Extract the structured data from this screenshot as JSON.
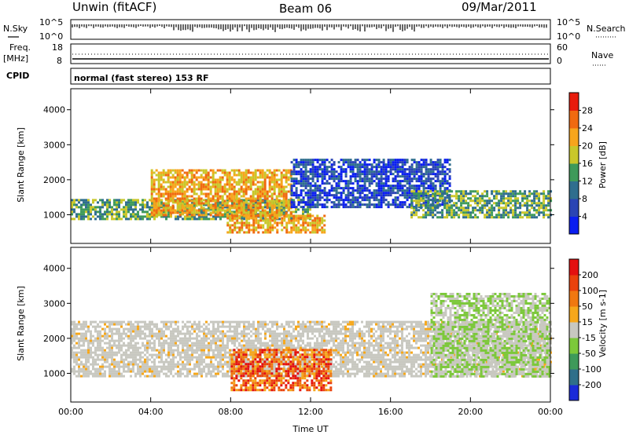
{
  "header": {
    "station": "Unwin (fitACF)",
    "beam": "Beam 06",
    "date": "09/Mar/2011"
  },
  "top_panels": {
    "nsky_label": "N.Sky",
    "nsearch_label": "N.Search",
    "freq_label_1": "Freq.",
    "freq_label_2": "[MHz]",
    "nave_label": "Nave",
    "cpid_label": "CPID",
    "mode_text": "normal (fast stereo) 153 RF",
    "noise_left_top": "10^5",
    "noise_left_bottom": "10^0",
    "noise_right_top": "10^5",
    "noise_right_bottom": "10^0",
    "freq_left_top": "18",
    "freq_left_bottom": "8",
    "nave_right_top": "60",
    "nave_right_bottom": "0"
  },
  "chart_data": [
    {
      "type": "heatmap",
      "name_label": "Power [dB]",
      "ylabel": "Slant Range [km]",
      "xlabel": "Time UT",
      "x_ticks": [
        "00:00",
        "04:00",
        "08:00",
        "12:00",
        "16:00",
        "20:00",
        "00:00"
      ],
      "xlim_hours": [
        0,
        24
      ],
      "ylim_km": [
        180,
        4600
      ],
      "y_ticks": [
        1000,
        2000,
        3000,
        4000
      ],
      "colorbar_ticks": [
        "4",
        "8",
        "12",
        "16",
        "20",
        "24",
        "28"
      ],
      "colorbar_colors": [
        "#0a1ef0",
        "#2a44b4",
        "#2f6e8e",
        "#3e9a5a",
        "#c9c72a",
        "#f7a51c",
        "#f06a10",
        "#e81c0c"
      ],
      "regions": [
        {
          "from_h": 0.0,
          "to_h": 12.0,
          "range_km": [
            900,
            1450
          ],
          "level": "medium"
        },
        {
          "from_h": 4.0,
          "to_h": 11.0,
          "range_km": [
            1000,
            2300
          ],
          "level": "high"
        },
        {
          "from_h": 7.8,
          "to_h": 12.7,
          "range_km": [
            500,
            1000
          ],
          "level": "high"
        },
        {
          "from_h": 11.0,
          "to_h": 19.0,
          "range_km": [
            1200,
            2600
          ],
          "level": "low"
        },
        {
          "from_h": 17.0,
          "to_h": 24.0,
          "range_km": [
            900,
            1700
          ],
          "level": "medium"
        }
      ]
    },
    {
      "type": "heatmap",
      "name_label": "Velocity [m s-1]",
      "ylabel": "Slant Range [km]",
      "xlabel": "Time UT",
      "x_ticks": [
        "00:00",
        "04:00",
        "08:00",
        "12:00",
        "16:00",
        "20:00",
        "00:00"
      ],
      "xlim_hours": [
        0,
        24
      ],
      "ylim_km": [
        180,
        4600
      ],
      "y_ticks": [
        1000,
        2000,
        3000,
        4000
      ],
      "colorbar_ticks": [
        "200",
        "100",
        "50",
        "15",
        "-15",
        "-50",
        "-100",
        "-200"
      ],
      "colorbar_colors": [
        "#1a2ad8",
        "#2f6f8a",
        "#3e9a5a",
        "#7cc83a",
        "#c8c8c0",
        "#f6a71a",
        "#f07810",
        "#ea420c",
        "#e41010"
      ],
      "regions": [
        {
          "from_h": 0.0,
          "to_h": 24.0,
          "range_km": [
            900,
            2500
          ],
          "level": "near-zero"
        },
        {
          "from_h": 8.0,
          "to_h": 13.0,
          "range_km": [
            500,
            1700
          ],
          "level": "away"
        },
        {
          "from_h": 18.0,
          "to_h": 24.0,
          "range_km": [
            900,
            3300
          ],
          "level": "toward"
        }
      ]
    }
  ]
}
